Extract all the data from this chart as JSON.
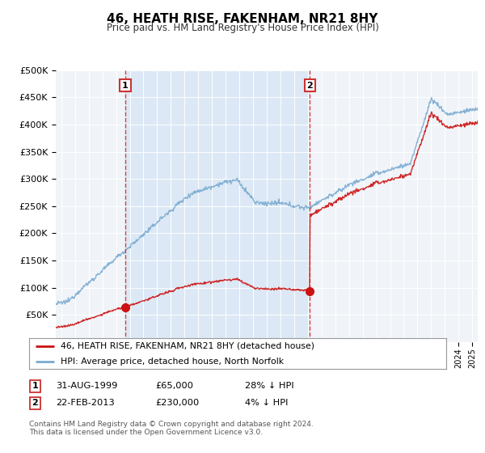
{
  "title": "46, HEATH RISE, FAKENHAM, NR21 8HY",
  "subtitle": "Price paid vs. HM Land Registry's House Price Index (HPI)",
  "sale1_date": 1999.67,
  "sale1_price": 65000,
  "sale1_label": "31-AUG-1999",
  "sale1_pct": "28% ↓ HPI",
  "sale2_date": 2013.14,
  "sale2_price": 230000,
  "sale2_label": "22-FEB-2013",
  "sale2_pct": "4% ↓ HPI",
  "legend_line1": "46, HEATH RISE, FAKENHAM, NR21 8HY (detached house)",
  "legend_line2": "HPI: Average price, detached house, North Norfolk",
  "footer": "Contains HM Land Registry data © Crown copyright and database right 2024.\nThis data is licensed under the Open Government Licence v3.0.",
  "hpi_color": "#7aaad0",
  "price_color": "#cc1111",
  "bg_color": "#dce8f5",
  "grid_color": "#ffffff",
  "ylim": [
    0,
    500000
  ],
  "xlim_start": 1994.6,
  "xlim_end": 2025.4
}
